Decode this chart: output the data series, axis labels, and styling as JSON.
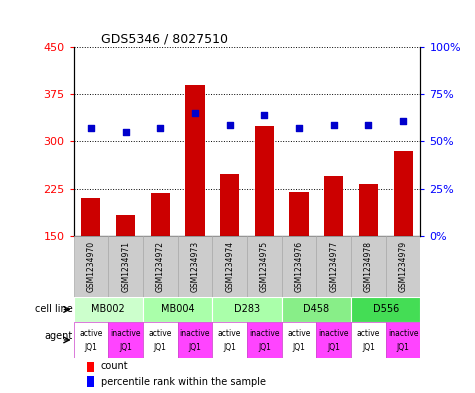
{
  "title": "GDS5346 / 8027510",
  "samples": [
    "GSM1234970",
    "GSM1234971",
    "GSM1234972",
    "GSM1234973",
    "GSM1234974",
    "GSM1234975",
    "GSM1234976",
    "GSM1234977",
    "GSM1234978",
    "GSM1234979"
  ],
  "counts": [
    210,
    183,
    218,
    390,
    248,
    325,
    220,
    245,
    232,
    285
  ],
  "percentiles": [
    57,
    55,
    57,
    65,
    59,
    64,
    57,
    59,
    59,
    61
  ],
  "ylim_left": [
    150,
    450
  ],
  "ylim_right": [
    0,
    100
  ],
  "yticks_left": [
    150,
    225,
    300,
    375,
    450
  ],
  "yticks_right": [
    0,
    25,
    50,
    75,
    100
  ],
  "cell_lines": [
    {
      "label": "MB002",
      "cols": [
        0,
        1
      ],
      "color": "#ccffcc"
    },
    {
      "label": "MB004",
      "cols": [
        2,
        3
      ],
      "color": "#aaffaa"
    },
    {
      "label": "D283",
      "cols": [
        4,
        5
      ],
      "color": "#aaffaa"
    },
    {
      "label": "D458",
      "cols": [
        6,
        7
      ],
      "color": "#88ee88"
    },
    {
      "label": "D556",
      "cols": [
        8,
        9
      ],
      "color": "#44dd55"
    }
  ],
  "agents": [
    "active\nJQ1",
    "inactive\nJQ1",
    "active\nJQ1",
    "inactive\nJQ1",
    "active\nJQ1",
    "inactive\nJQ1",
    "active\nJQ1",
    "inactive\nJQ1",
    "active\nJQ1",
    "inactive\nJQ1"
  ],
  "agent_active_color": "#ffffff",
  "agent_inactive_color": "#ff44ff",
  "agent_border_color": "#cc44cc",
  "bar_color": "#cc0000",
  "dot_color": "#0000cc",
  "sample_box_color": "#cccccc",
  "sample_box_edge": "#aaaaaa"
}
